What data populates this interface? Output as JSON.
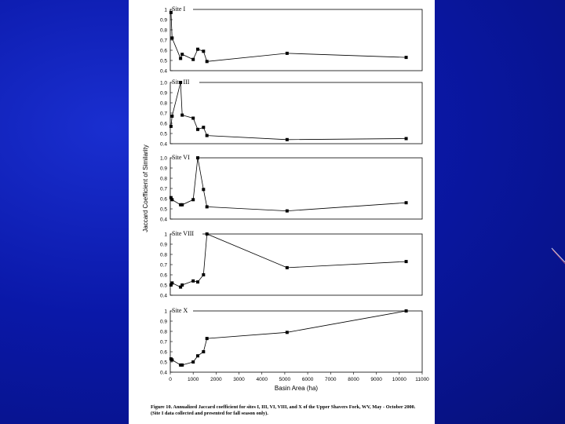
{
  "chart_data": {
    "type": "line",
    "xlabel": "Basin Area (ha)",
    "ylabel": "Jaccard Coefficient of Similarity",
    "xlim": [
      0,
      11000
    ],
    "xticks": [
      "0",
      "1000",
      "2000",
      "3000",
      "4000",
      "5000",
      "6000",
      "7000",
      "8000",
      "9000",
      "10000",
      "11000"
    ],
    "panels": [
      {
        "name": "Site I",
        "ylim": [
          0.4,
          1.0
        ],
        "yticks": [
          "1",
          "0.9",
          "0.8",
          "0.7",
          "0.6",
          "0.5",
          "0.4"
        ],
        "x": [
          30,
          80,
          450,
          520,
          1000,
          1200,
          1450,
          1600,
          5100,
          10300
        ],
        "y": [
          0.97,
          0.72,
          0.52,
          0.56,
          0.51,
          0.61,
          0.59,
          0.49,
          0.57,
          0.53
        ]
      },
      {
        "name": "Site III",
        "ylim": [
          0.4,
          1.0
        ],
        "yticks": [
          "1.0",
          "0.9",
          "0.8",
          "0.7",
          "0.6",
          "0.5",
          "0.4"
        ],
        "x": [
          30,
          80,
          450,
          520,
          1000,
          1200,
          1450,
          1600,
          5100,
          10300
        ],
        "y": [
          0.57,
          0.67,
          1.0,
          0.68,
          0.65,
          0.54,
          0.56,
          0.48,
          0.44,
          0.45
        ]
      },
      {
        "name": "Site VI",
        "ylim": [
          0.4,
          1.0
        ],
        "yticks": [
          "1.0",
          "0.9",
          "0.8",
          "0.7",
          "0.6",
          "0.5",
          "0.4"
        ],
        "x": [
          30,
          80,
          450,
          520,
          1000,
          1200,
          1450,
          1600,
          5100,
          10300
        ],
        "y": [
          0.61,
          0.59,
          0.54,
          0.54,
          0.59,
          1.0,
          0.69,
          0.52,
          0.48,
          0.56
        ]
      },
      {
        "name": "Site VIII",
        "ylim": [
          0.4,
          1.0
        ],
        "yticks": [
          "1",
          "0.9",
          "0.8",
          "0.7",
          "0.6",
          "0.5",
          "0.4"
        ],
        "x": [
          30,
          80,
          450,
          520,
          1000,
          1200,
          1450,
          1600,
          5100,
          10300
        ],
        "y": [
          0.5,
          0.52,
          0.48,
          0.5,
          0.54,
          0.53,
          0.6,
          1.0,
          0.67,
          0.73
        ]
      },
      {
        "name": "Site X",
        "ylim": [
          0.4,
          1.0
        ],
        "yticks": [
          "1",
          "0.9",
          "0.8",
          "0.7",
          "0.6",
          "0.5",
          "0.4"
        ],
        "x": [
          30,
          80,
          450,
          520,
          1000,
          1200,
          1450,
          1600,
          5100,
          10300
        ],
        "y": [
          0.53,
          0.52,
          0.47,
          0.47,
          0.5,
          0.56,
          0.6,
          0.73,
          0.79,
          1.0
        ]
      }
    ]
  },
  "caption": "Figure 10.  Annualized Jaccard coefficient for sites I, III, VI, VIII, and X of the Upper Shavers Fork, WV, May - October 2000.  (Site I data collected and presented for fall season only)."
}
